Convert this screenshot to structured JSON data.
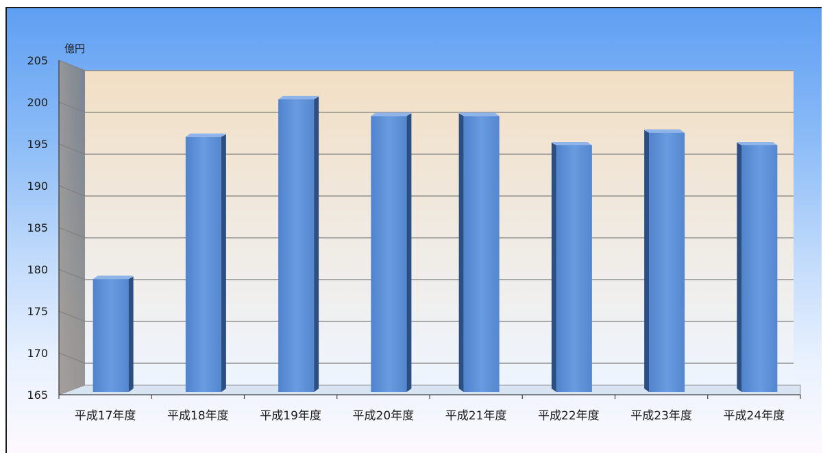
{
  "chart_data": {
    "type": "bar",
    "title": "",
    "xlabel": "",
    "ylabel": "億円",
    "ylim": [
      165,
      205
    ],
    "ytick_step": 5,
    "grid": true,
    "categories": [
      "平成17年度",
      "平成18年度",
      "平成19年度",
      "平成20年度",
      "平成21年度",
      "平成22年度",
      "平成23年度",
      "平成24年度"
    ],
    "values": [
      179,
      196,
      200.5,
      198.5,
      198.5,
      195,
      196.5,
      195
    ],
    "colors": {
      "bar_front": "#5b8fd6",
      "bar_side": "#2b4f82",
      "back_wall_top": "#fde3c0",
      "back_wall_bottom": "#eef5ff",
      "side_wall": "#8e8a86",
      "gridline": "#7f7f7f"
    }
  }
}
